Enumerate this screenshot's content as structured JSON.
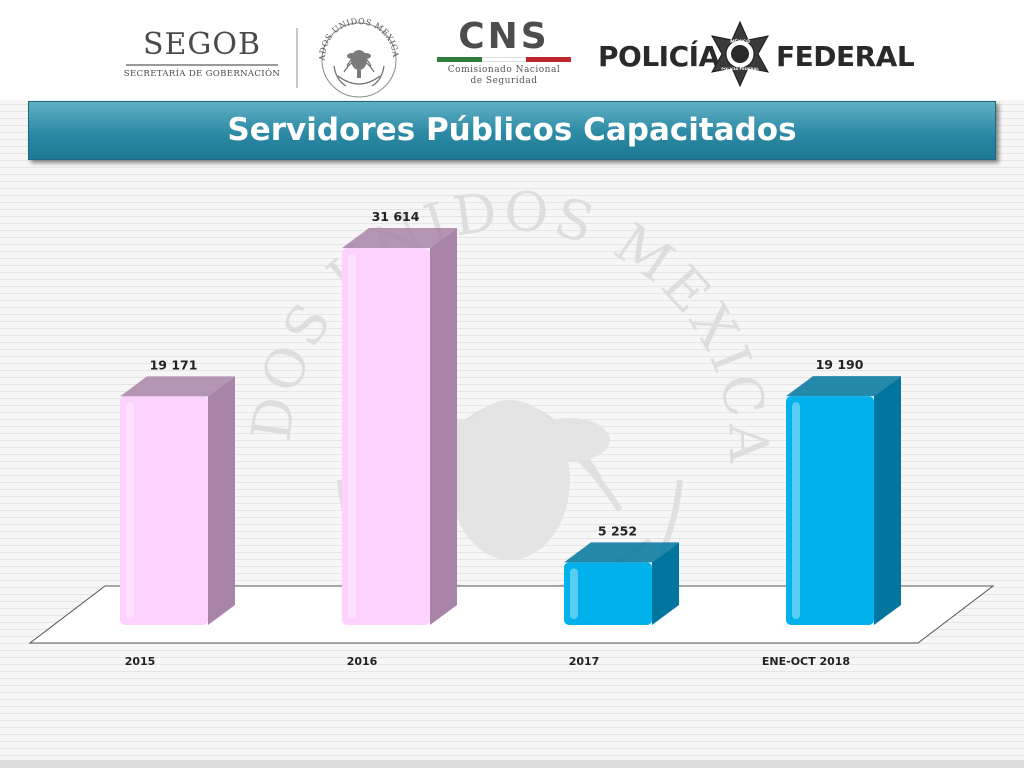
{
  "header": {
    "logos": [
      {
        "name": "segob-logo",
        "text": "SEGOB",
        "subtitle": "SECRETARÍA DE GOBERNACIÓN"
      },
      {
        "name": "national-seal-logo",
        "text": "ESTADOS UNIDOS MEXICANOS"
      },
      {
        "name": "cns-logo",
        "text": "CNS",
        "subtitle_line1": "Comisionado Nacional",
        "subtitle_line2": "de Seguridad",
        "bar_colors": [
          "#2e7d3a",
          "#ffffff",
          "#c0272d"
        ]
      },
      {
        "name": "policia-federal-logo",
        "word_left": "POLICÍA",
        "word_right": "FEDERAL",
        "badge_text": [
          "MÉXICO",
          "POLICÍA FEDERAL"
        ]
      }
    ]
  },
  "banner": {
    "color_top": "#5fb0c3",
    "color_bottom": "#1e7892"
  },
  "watermark": {
    "text": "ESTADOS UNIDOS MEXICANOS"
  },
  "chart_data": {
    "type": "bar",
    "title": "Servidores Públicos Capacitados",
    "categories": [
      "2015",
      "2016",
      "2017",
      "ENE-OCT 2018"
    ],
    "values": [
      19171,
      31614,
      5252,
      19190
    ],
    "value_labels": [
      "19 171",
      "31 614",
      "5 252",
      "19 190"
    ],
    "bar_colors": [
      "#fdd2ff",
      "#fdd2ff",
      "#00b1ec",
      "#00b1ec"
    ],
    "bar_side_colors": [
      "#a884a8",
      "#a884a8",
      "#00769f",
      "#00769f"
    ],
    "xlabel": "",
    "ylabel": "",
    "ylim": [
      0,
      33000
    ],
    "grid": false,
    "legend": "none",
    "style": "3d-column"
  }
}
